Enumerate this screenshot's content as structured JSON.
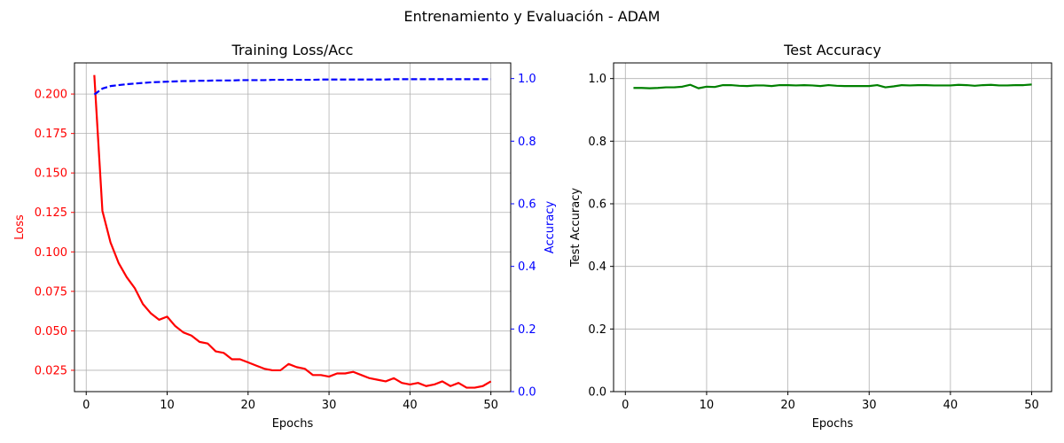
{
  "figure": {
    "suptitle": "Entrenamiento y Evaluación - ADAM"
  },
  "chart_data": [
    {
      "type": "line",
      "title": "Training Loss/Acc",
      "xlabel": "Epochs",
      "ylabel": "Loss",
      "ylabel_right": "Accuracy",
      "xlim": [
        -1.45,
        52.45
      ],
      "ylim": [
        0.0115,
        0.2197
      ],
      "ylim_right": [
        0,
        1.05
      ],
      "xticks": [
        0,
        10,
        20,
        30,
        40,
        50
      ],
      "yticks": [
        "0.025",
        "0.050",
        "0.075",
        "0.100",
        "0.125",
        "0.150",
        "0.175",
        "0.200"
      ],
      "yticks_right": [
        "0.0",
        "0.2",
        "0.4",
        "0.6",
        "0.8",
        "1.0"
      ],
      "grid": true,
      "colors": {
        "loss": "#ff0000",
        "accuracy": "#0000ff"
      },
      "x": [
        1,
        2,
        3,
        4,
        5,
        6,
        7,
        8,
        9,
        10,
        11,
        12,
        13,
        14,
        15,
        16,
        17,
        18,
        19,
        20,
        21,
        22,
        23,
        24,
        25,
        26,
        27,
        28,
        29,
        30,
        31,
        32,
        33,
        34,
        35,
        36,
        37,
        38,
        39,
        40,
        41,
        42,
        43,
        44,
        45,
        46,
        47,
        48,
        49,
        50
      ],
      "series": [
        {
          "axis": "left",
          "style": "solid",
          "values": [
            0.212,
            0.126,
            0.106,
            0.093,
            0.084,
            0.077,
            0.067,
            0.061,
            0.057,
            0.059,
            0.053,
            0.049,
            0.047,
            0.043,
            0.042,
            0.037,
            0.036,
            0.032,
            0.032,
            0.03,
            0.028,
            0.026,
            0.025,
            0.025,
            0.029,
            0.027,
            0.026,
            0.022,
            0.022,
            0.021,
            0.023,
            0.023,
            0.024,
            0.022,
            0.02,
            0.019,
            0.018,
            0.02,
            0.017,
            0.016,
            0.017,
            0.015,
            0.016,
            0.018,
            0.015,
            0.017,
            0.014,
            0.014,
            0.015,
            0.018
          ]
        },
        {
          "axis": "right",
          "style": "dashed",
          "values": [
            0.949,
            0.968,
            0.976,
            0.979,
            0.982,
            0.984,
            0.986,
            0.988,
            0.989,
            0.99,
            0.991,
            0.992,
            0.992,
            0.993,
            0.993,
            0.994,
            0.994,
            0.994,
            0.995,
            0.995,
            0.995,
            0.995,
            0.996,
            0.996,
            0.996,
            0.996,
            0.996,
            0.996,
            0.997,
            0.997,
            0.997,
            0.997,
            0.997,
            0.997,
            0.997,
            0.997,
            0.997,
            0.998,
            0.998,
            0.998,
            0.998,
            0.998,
            0.998,
            0.998,
            0.998,
            0.998,
            0.998,
            0.998,
            0.998,
            0.998
          ]
        }
      ]
    },
    {
      "type": "line",
      "title": "Test Accuracy",
      "xlabel": "Epochs",
      "ylabel": "Test Accuracy",
      "xlim": [
        -1.45,
        52.45
      ],
      "ylim": [
        0,
        1.05
      ],
      "xticks": [
        0,
        10,
        20,
        30,
        40,
        50
      ],
      "yticks": [
        "0.0",
        "0.2",
        "0.4",
        "0.6",
        "0.8",
        "1.0"
      ],
      "grid": true,
      "colors": {
        "accuracy": "#008000"
      },
      "x": [
        1,
        2,
        3,
        4,
        5,
        6,
        7,
        8,
        9,
        10,
        11,
        12,
        13,
        14,
        15,
        16,
        17,
        18,
        19,
        20,
        21,
        22,
        23,
        24,
        25,
        26,
        27,
        28,
        29,
        30,
        31,
        32,
        33,
        34,
        35,
        36,
        37,
        38,
        39,
        40,
        41,
        42,
        43,
        44,
        45,
        46,
        47,
        48,
        49,
        50
      ],
      "series": [
        {
          "axis": "left",
          "style": "solid",
          "values": [
            0.97,
            0.97,
            0.969,
            0.97,
            0.972,
            0.972,
            0.974,
            0.98,
            0.969,
            0.974,
            0.973,
            0.979,
            0.979,
            0.977,
            0.976,
            0.978,
            0.978,
            0.976,
            0.979,
            0.979,
            0.978,
            0.979,
            0.978,
            0.976,
            0.979,
            0.977,
            0.976,
            0.976,
            0.976,
            0.976,
            0.979,
            0.972,
            0.975,
            0.979,
            0.978,
            0.979,
            0.979,
            0.978,
            0.978,
            0.978,
            0.98,
            0.979,
            0.977,
            0.979,
            0.98,
            0.978,
            0.978,
            0.979,
            0.979,
            0.981
          ]
        }
      ]
    }
  ]
}
